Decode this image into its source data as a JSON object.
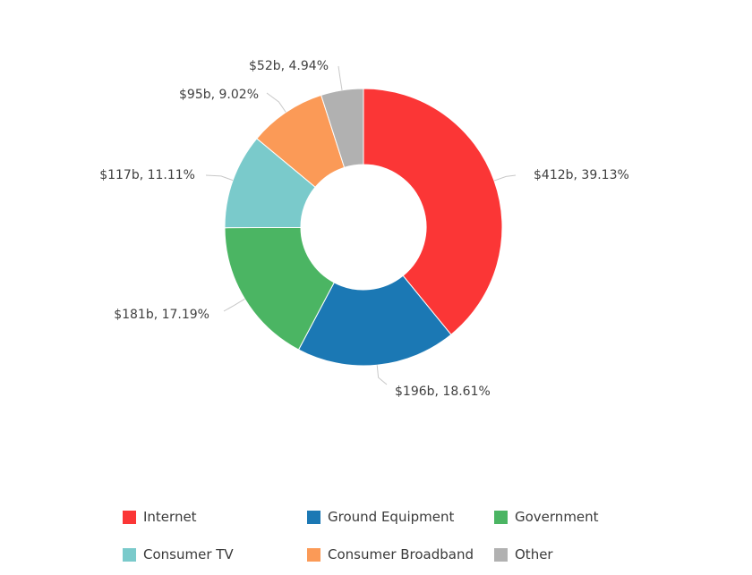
{
  "chart_data": {
    "type": "pie",
    "variant": "donut",
    "title": "",
    "unit": "billion USD",
    "slices": [
      {
        "name": "Internet",
        "value": 412,
        "percent": 39.13,
        "label": "$412b, 39.13%",
        "color": "#fb3636"
      },
      {
        "name": "Ground Equipment",
        "value": 196,
        "percent": 18.61,
        "label": "$196b, 18.61%",
        "color": "#1b78b4"
      },
      {
        "name": "Government",
        "value": 181,
        "percent": 17.19,
        "label": "$181b, 17.19%",
        "color": "#4bb563"
      },
      {
        "name": "Consumer TV",
        "value": 117,
        "percent": 11.11,
        "label": "$117b, 11.11%",
        "color": "#7acacb"
      },
      {
        "name": "Consumer Broadband",
        "value": 95,
        "percent": 9.02,
        "label": "$95b, 9.02%",
        "color": "#fb9a57"
      },
      {
        "name": "Other",
        "value": 52,
        "percent": 4.94,
        "label": "$52b, 4.94%",
        "color": "#b1b1b1"
      }
    ],
    "legend_position": "bottom"
  }
}
